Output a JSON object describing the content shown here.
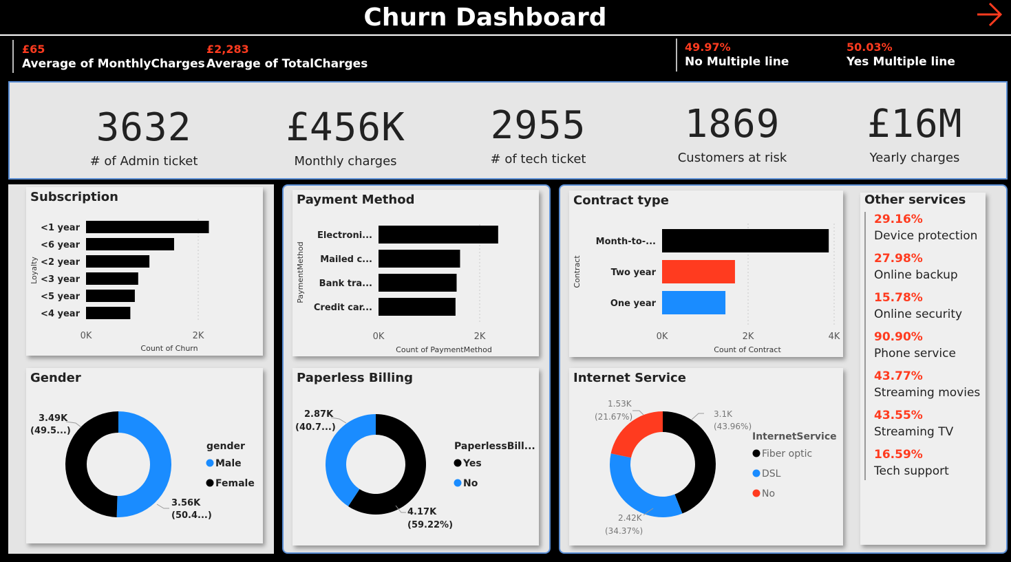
{
  "header": {
    "title": "Churn Dashboard",
    "top_kpis": [
      {
        "value": "£65",
        "label": "Average of MonthlyCharges"
      },
      {
        "value": "£2,283",
        "label": "Average of TotalCharges"
      },
      {
        "value": "49.97%",
        "label": "No Multiple line"
      },
      {
        "value": "50.03%",
        "label": "Yes Multiple line"
      }
    ]
  },
  "cards": [
    {
      "value": "3632",
      "caption": "# of Admin ticket"
    },
    {
      "value": "£456K",
      "caption": "Monthly charges"
    },
    {
      "value": "2955",
      "caption": "# of tech ticket"
    },
    {
      "value": "1869",
      "caption": "Customers at risk"
    },
    {
      "value": "£16M",
      "caption": "Yearly charges"
    }
  ],
  "subscription": {
    "title": "Subscription",
    "ylabel": "Loyalty",
    "xlabel": "Count of Churn",
    "ticks": [
      "0K",
      "2K"
    ],
    "colors": {
      "bar": "#000000"
    }
  },
  "payment": {
    "title": "Payment Method",
    "ylabel": "PaymentMethod",
    "xlabel": "Count of PaymentMethod",
    "ticks": [
      "0K",
      "2K"
    ]
  },
  "contract": {
    "title": "Contract type",
    "ylabel": "Contract",
    "xlabel": "Count of Contract",
    "ticks": [
      "0K",
      "2K",
      "4K"
    ]
  },
  "gender": {
    "title": "Gender",
    "legend_title": "gender",
    "labels": [
      {
        "l1": "3.49K",
        "l2": "(49.5...)"
      },
      {
        "l1": "3.56K",
        "l2": "(50.4...)"
      }
    ]
  },
  "paperless": {
    "title": "Paperless Billing",
    "legend_title": "PaperlessBill...",
    "labels": [
      {
        "l1": "2.87K",
        "l2": "(40.7...)"
      },
      {
        "l1": "4.17K",
        "l2": "(59.22%)"
      }
    ]
  },
  "internet": {
    "title": "Internet Service",
    "legend_title": "InternetService",
    "labels": [
      {
        "l1": "1.53K",
        "l2": "(21.67%)"
      },
      {
        "l1": "3.1K",
        "l2": "(43.96%)"
      },
      {
        "l1": "2.42K",
        "l2": "(34.37%)"
      }
    ]
  },
  "other_services": {
    "title": "Other services",
    "items": [
      {
        "pct": "29.16%",
        "name": "Device protection"
      },
      {
        "pct": "27.98%",
        "name": "Online backup"
      },
      {
        "pct": "15.78%",
        "name": "Online security"
      },
      {
        "pct": "90.90%",
        "name": "Phone service"
      },
      {
        "pct": "43.77%",
        "name": "Streaming movies"
      },
      {
        "pct": "43.55%",
        "name": "Streaming TV"
      },
      {
        "pct": "16.59%",
        "name": "Tech support"
      }
    ]
  },
  "colors": {
    "accent": "#ff3b1f",
    "blue": "#1a8cff",
    "black": "#000000"
  },
  "chart_data": [
    {
      "type": "bar",
      "title": "Subscription",
      "ylabel": "Loyalty",
      "xlabel": "Count of Churn",
      "categories": [
        "<1 year",
        "<6 year",
        "<2 year",
        "<3 year",
        "<5 year",
        "<4 year"
      ],
      "values": [
        2190,
        1570,
        1130,
        930,
        870,
        790
      ],
      "xlim": [
        0,
        2200
      ]
    },
    {
      "type": "bar",
      "title": "Payment Method",
      "ylabel": "PaymentMethod",
      "xlabel": "Count of PaymentMethod",
      "categories": [
        "Electroni...",
        "Mailed c...",
        "Bank tra...",
        "Credit car..."
      ],
      "values": [
        2365,
        1612,
        1544,
        1522
      ],
      "xlim": [
        0,
        2300
      ]
    },
    {
      "type": "bar",
      "title": "Contract type",
      "ylabel": "Contract",
      "xlabel": "Count of Contract",
      "categories": [
        "Month-to-...",
        "Two year",
        "One year"
      ],
      "values": [
        3875,
        1695,
        1473
      ],
      "colors": [
        "#000000",
        "#ff3b1f",
        "#1a8cff"
      ],
      "xlim": [
        0,
        4000
      ]
    },
    {
      "type": "pie",
      "title": "Gender",
      "categories": [
        "Male",
        "Female"
      ],
      "values": [
        3560,
        3490
      ],
      "colors": [
        "#1a8cff",
        "#000000"
      ]
    },
    {
      "type": "pie",
      "title": "Paperless Billing",
      "categories": [
        "Yes",
        "No"
      ],
      "values": [
        4170,
        2870
      ],
      "colors": [
        "#000000",
        "#1a8cff"
      ]
    },
    {
      "type": "pie",
      "title": "Internet Service",
      "categories": [
        "Fiber optic",
        "DSL",
        "No"
      ],
      "values": [
        3100,
        2420,
        1530
      ],
      "colors": [
        "#000000",
        "#1a8cff",
        "#ff3b1f"
      ]
    }
  ]
}
